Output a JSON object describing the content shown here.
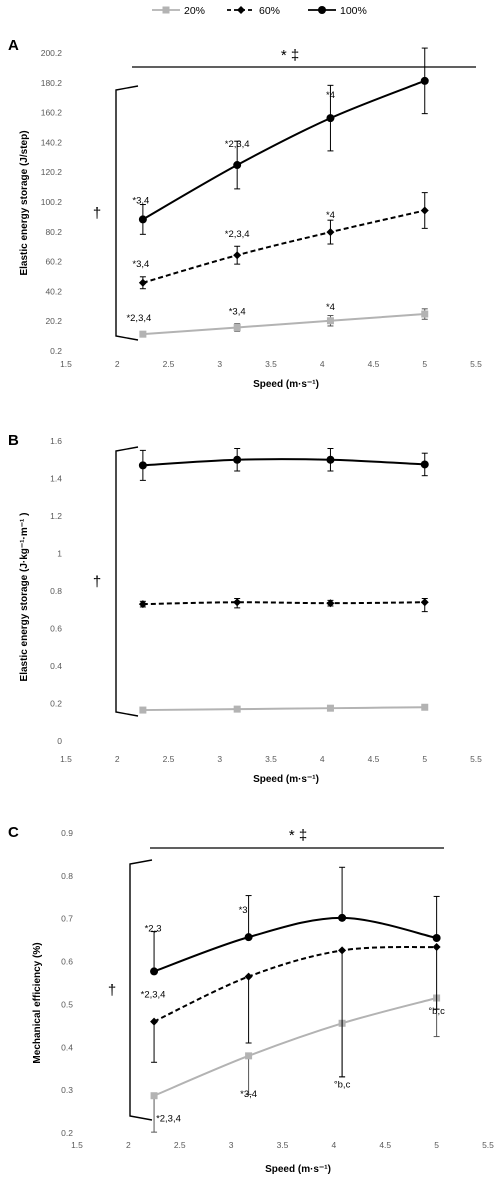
{
  "legend": [
    {
      "name": "20%",
      "color": "#b3b3b3",
      "dash": "solid",
      "marker": "square"
    },
    {
      "name": "60%",
      "color": "#000000",
      "dash": "dashed",
      "marker": "diamond"
    },
    {
      "name": "100%",
      "color": "#000000",
      "dash": "solid",
      "marker": "circle"
    }
  ],
  "chart_data": [
    {
      "type": "line",
      "panel": "A",
      "xlabel": "Speed (m·s⁻¹)",
      "ylabel": "Elastic energy storage (J/step)",
      "xlim": [
        1.5,
        5.5
      ],
      "ylim": [
        0.2,
        200.2
      ],
      "xticks": [
        "1.5",
        "2",
        "2.5",
        "3",
        "3.5",
        "4",
        "4.5",
        "5",
        "5.5"
      ],
      "yticks": [
        "0.2",
        "20.2",
        "40.2",
        "60.2",
        "80.2",
        "100.2",
        "120.2",
        "140.2",
        "160.2",
        "180.2",
        "200.2"
      ],
      "x": [
        2.25,
        3.17,
        4.08,
        5.0
      ],
      "series": [
        {
          "name": "20%",
          "values": [
            11.5,
            16.0,
            20.5,
            25.0
          ],
          "err_up": [
            1.5,
            2.5,
            3.5,
            3.5
          ],
          "err_down": [
            1.5,
            2.5,
            3.5,
            3.5
          ]
        },
        {
          "name": "60%",
          "values": [
            46.0,
            64.5,
            80.0,
            94.5
          ],
          "err_up": [
            4.0,
            6.0,
            8.0,
            12.0
          ],
          "err_down": [
            4.0,
            6.0,
            8.0,
            12.0
          ]
        },
        {
          "name": "100%",
          "values": [
            88.5,
            125.0,
            156.5,
            181.5
          ],
          "err_up": [
            10.0,
            16.0,
            22.0,
            22.0
          ],
          "err_down": [
            10.0,
            16.0,
            22.0,
            22.0
          ]
        }
      ],
      "annotations": [
        {
          "text": "*2,3,4",
          "series": "20%",
          "x": 2.25
        },
        {
          "text": "*3,4",
          "series": "20%",
          "x": 3.17
        },
        {
          "text": "*4",
          "series": "20%",
          "x": 4.08
        },
        {
          "text": "*3,4",
          "series": "60%",
          "x": 2.25
        },
        {
          "text": "*2,3,4",
          "series": "60%",
          "x": 3.17
        },
        {
          "text": "*4",
          "series": "60%",
          "x": 4.08
        },
        {
          "text": "*3,4",
          "series": "100%",
          "x": 2.25
        },
        {
          "text": "*2,3,4",
          "series": "100%",
          "x": 3.17
        },
        {
          "text": "*4",
          "series": "100%",
          "x": 4.08
        }
      ],
      "significance_top": "*  ‡",
      "bracket_label": "†"
    },
    {
      "type": "line",
      "panel": "B",
      "xlabel": "Speed (m·s⁻¹)",
      "ylabel": "Elastic energy storage (J·kg⁻¹·m⁻¹ )",
      "xlim": [
        1.5,
        5.5
      ],
      "ylim": [
        0,
        1.6
      ],
      "xticks": [
        "1.5",
        "2",
        "2.5",
        "3",
        "3.5",
        "4",
        "4.5",
        "5",
        "5.5"
      ],
      "yticks": [
        "0",
        "0.2",
        "0.4",
        "0.6",
        "0.8",
        "1",
        "1.2",
        "1.4",
        "1.6"
      ],
      "x": [
        2.25,
        3.17,
        4.08,
        5.0
      ],
      "series": [
        {
          "name": "20%",
          "values": [
            0.165,
            0.17,
            0.175,
            0.18
          ],
          "err_up": [
            0.01,
            0.01,
            0.01,
            0.01
          ],
          "err_down": [
            0.01,
            0.01,
            0.01,
            0.01
          ]
        },
        {
          "name": "60%",
          "values": [
            0.73,
            0.74,
            0.735,
            0.74
          ],
          "err_up": [
            0.015,
            0.02,
            0.015,
            0.02
          ],
          "err_down": [
            0.015,
            0.03,
            0.015,
            0.05
          ]
        },
        {
          "name": "100%",
          "values": [
            1.47,
            1.5,
            1.5,
            1.475
          ],
          "err_up": [
            0.08,
            0.06,
            0.06,
            0.06
          ],
          "err_down": [
            0.08,
            0.06,
            0.06,
            0.06
          ]
        }
      ],
      "annotations": [],
      "significance_top": "",
      "bracket_label": "†"
    },
    {
      "type": "line",
      "panel": "C",
      "xlabel": "Speed (m·s⁻¹)",
      "ylabel": "Mechanical efficiency (%)",
      "xlim": [
        1.5,
        5.5
      ],
      "ylim": [
        0.2,
        0.9
      ],
      "xticks": [
        "1.5",
        "2",
        "2.5",
        "3",
        "3.5",
        "4",
        "4.5",
        "5",
        "5.5"
      ],
      "yticks": [
        "0.2",
        "0.3",
        "0.4",
        "0.5",
        "0.6",
        "0.7",
        "0.8",
        "0.9"
      ],
      "x": [
        2.25,
        3.17,
        4.08,
        5.0
      ],
      "series": [
        {
          "name": "20%",
          "values": [
            0.287,
            0.38,
            0.456,
            0.515
          ],
          "err_up": [
            0,
            0,
            0,
            0
          ],
          "err_down": [
            0.085,
            0.09,
            0.125,
            0.09
          ]
        },
        {
          "name": "60%",
          "values": [
            0.46,
            0.565,
            0.626,
            0.634
          ],
          "err_up": [
            0,
            0,
            0,
            0
          ],
          "err_down": [
            0.095,
            0.155,
            0.295,
            0.145
          ]
        },
        {
          "name": "100%",
          "values": [
            0.577,
            0.657,
            0.702,
            0.655
          ],
          "err_up": [
            0.093,
            0.097,
            0.118,
            0.097
          ],
          "err_down": [
            0,
            0,
            0,
            0
          ]
        }
      ],
      "annotations": [
        {
          "text": "*2,3",
          "series": "100%",
          "x": 2.25
        },
        {
          "text": "*3",
          "series": "100%",
          "x": 3.17
        },
        {
          "text": "*2,3,4",
          "series": "60%",
          "x": 2.25
        },
        {
          "text": "*2,3,4",
          "series": "20%",
          "x": 2.25
        },
        {
          "text": "*3,4",
          "series": "20%",
          "x": 3.17
        },
        {
          "text": "°b,c",
          "series": "20%",
          "x": 4.08
        },
        {
          "text": "°b,c",
          "series": "20%",
          "x": 5.0
        }
      ],
      "significance_top": "*  ‡",
      "bracket_label": "†"
    }
  ]
}
